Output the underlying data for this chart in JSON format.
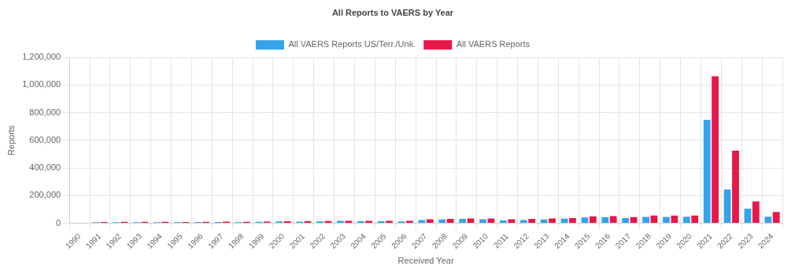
{
  "chart_data": {
    "type": "bar",
    "title": "All Reports to VAERS by Year",
    "xlabel": "Received Year",
    "ylabel": "Reports",
    "categories": [
      "1990",
      "1991",
      "1992",
      "1993",
      "1994",
      "1995",
      "1996",
      "1997",
      "1998",
      "1999",
      "2000",
      "2001",
      "2002",
      "2003",
      "2004",
      "2005",
      "2006",
      "2007",
      "2008",
      "2009",
      "2010",
      "2011",
      "2012",
      "2013",
      "2014",
      "2015",
      "2016",
      "2017",
      "2018",
      "2019",
      "2020",
      "2021",
      "2022",
      "2023",
      "2024"
    ],
    "series": [
      {
        "name": "All VAERS Reports US/Terr./Unk.",
        "color": "#36a2eb",
        "values": [
          null,
          8000,
          8000,
          8000,
          8000,
          8000,
          9000,
          9000,
          8000,
          10000,
          13000,
          12000,
          13000,
          17000,
          15000,
          15000,
          13000,
          23000,
          27000,
          31000,
          29000,
          21000,
          23000,
          27000,
          33000,
          42000,
          44000,
          37000,
          46000,
          46000,
          48000,
          748000,
          244000,
          106000,
          48000
        ]
      },
      {
        "name": "All VAERS Reports",
        "color": "#e8174a",
        "values": [
          null,
          9000,
          10000,
          10000,
          10000,
          9000,
          10000,
          12000,
          10000,
          12000,
          15000,
          14000,
          16000,
          18000,
          17000,
          17000,
          17000,
          29000,
          31000,
          35000,
          35000,
          29000,
          31000,
          35000,
          38000,
          50000,
          52000,
          44000,
          56000,
          56000,
          56000,
          1063000,
          526000,
          158000,
          81000
        ]
      }
    ],
    "ylim": [
      0,
      1200000
    ],
    "yticks": [
      {
        "value": 0,
        "label": "0"
      },
      {
        "value": 200000,
        "label": "200,000"
      },
      {
        "value": 400000,
        "label": "400,000"
      },
      {
        "value": 600000,
        "label": "600,000"
      },
      {
        "value": 800000,
        "label": "800,000"
      },
      {
        "value": 1000000,
        "label": "1,000,000"
      },
      {
        "value": 1200000,
        "label": "1,200,000"
      }
    ],
    "grid": true,
    "legend": "top"
  }
}
